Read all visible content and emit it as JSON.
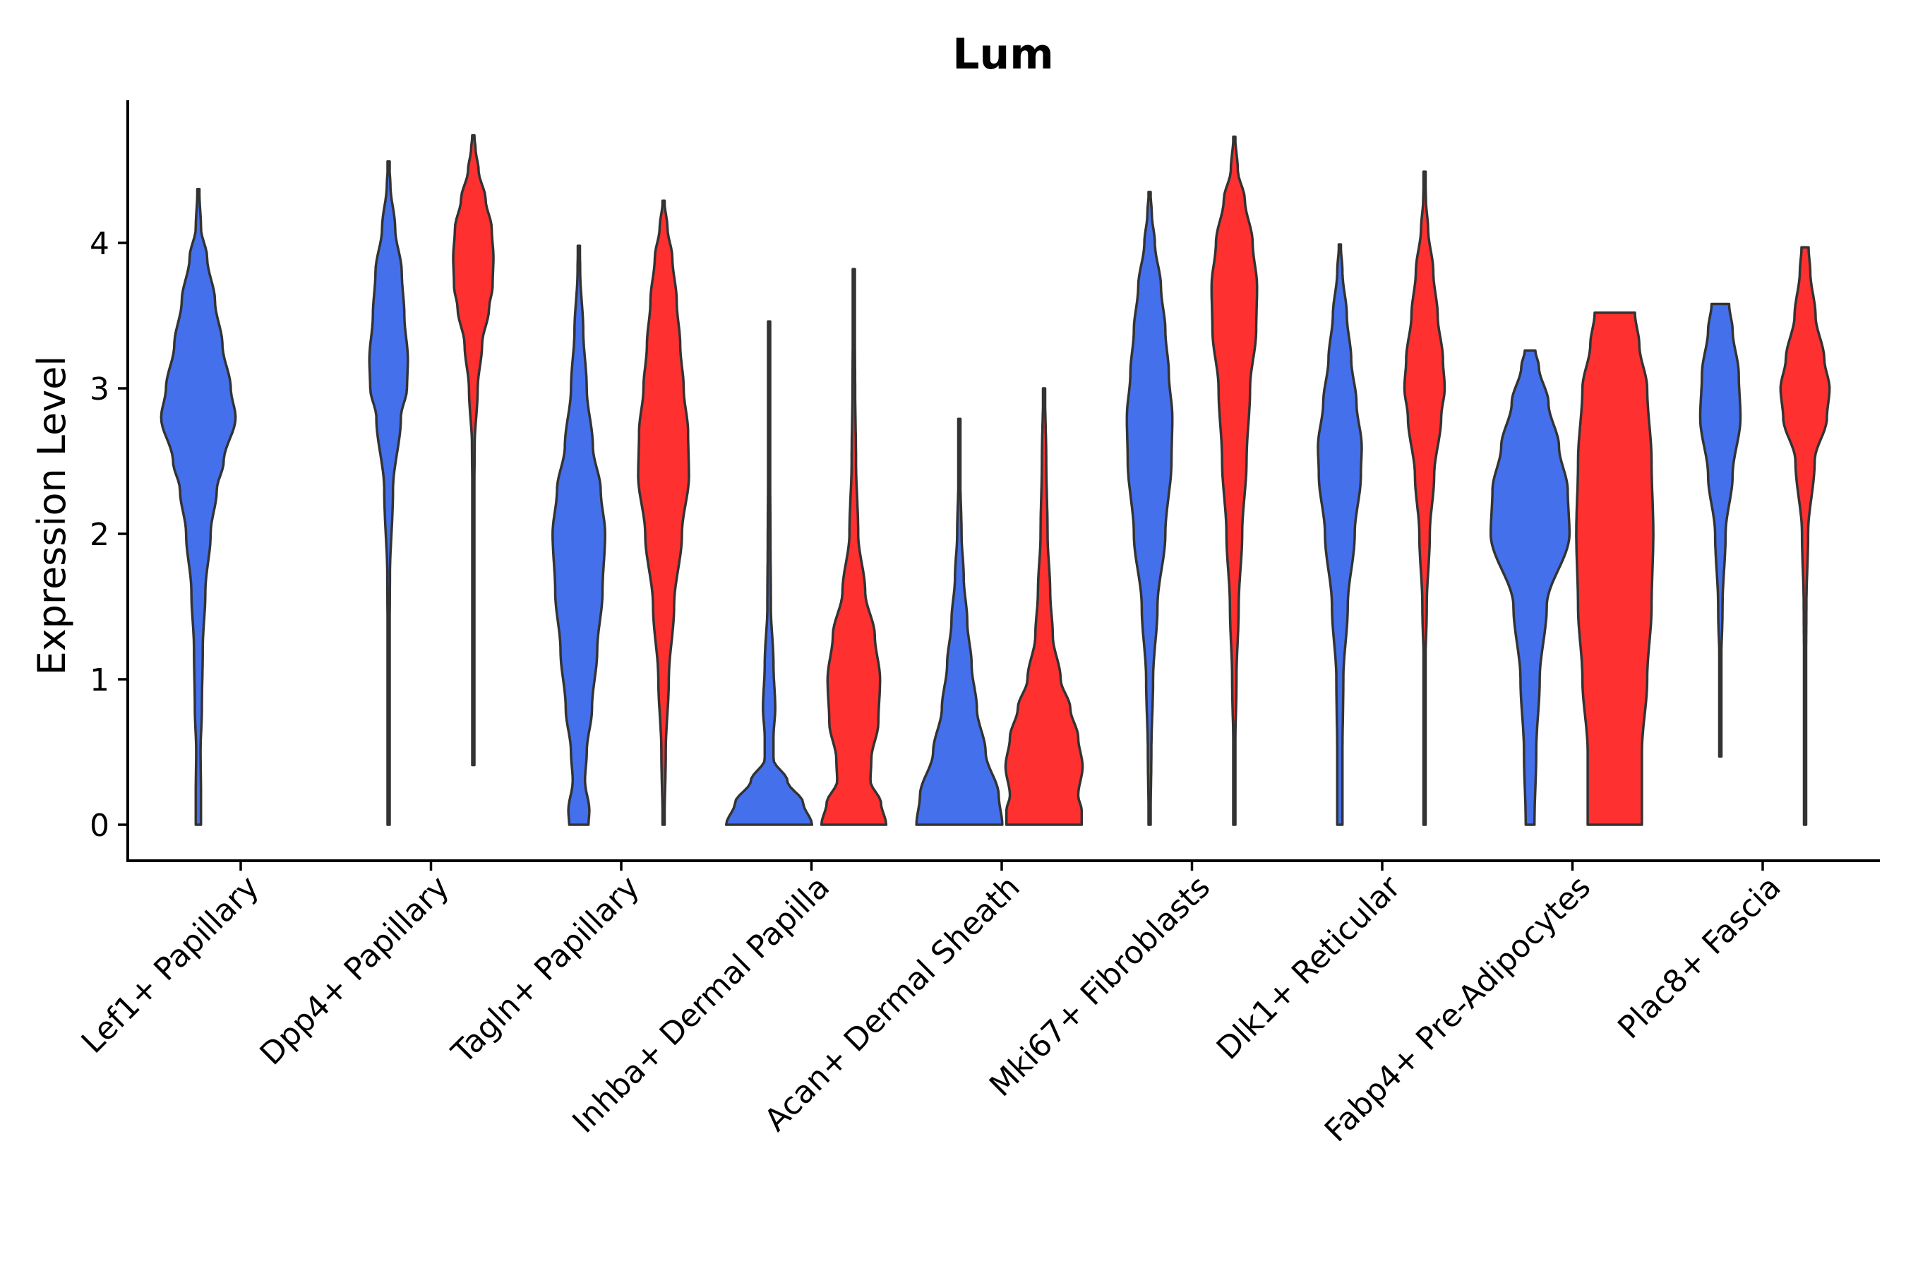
{
  "chart_data": {
    "type": "violin",
    "title": "Lum",
    "xlabel": "",
    "ylabel": "Expression Level",
    "ylim": [
      -0.25,
      4.95
    ],
    "yticks": [
      0,
      1,
      2,
      3,
      4
    ],
    "categories": [
      "Lef1+ Papillary",
      "Dpp4+ Papillary",
      "Tagln+ Papillary",
      "Inhba+ Dermal Papilla",
      "Acan+ Dermal Sheath",
      "Mki67+ Fibroblasts",
      "Dlk1+ Reticular",
      "Fabp4+ Pre-Adipocytes",
      "Plac8+ Fascia"
    ],
    "colors": {
      "group1": "#4470EC",
      "group2": "#FF3030",
      "outline": "#333333"
    },
    "violins": [
      {
        "category": "Lef1+ Papillary",
        "group": "group1",
        "min": 0.0,
        "max": 4.37,
        "profile": [
          [
            0,
            0.06
          ],
          [
            0.2,
            0.06
          ],
          [
            0.5,
            0.05
          ],
          [
            0.8,
            0.08
          ],
          [
            1.2,
            0.1
          ],
          [
            1.6,
            0.16
          ],
          [
            2.0,
            0.28
          ],
          [
            2.3,
            0.42
          ],
          [
            2.5,
            0.58
          ],
          [
            2.8,
            0.85
          ],
          [
            3.0,
            0.74
          ],
          [
            3.3,
            0.55
          ],
          [
            3.6,
            0.38
          ],
          [
            3.9,
            0.2
          ],
          [
            4.1,
            0.06
          ],
          [
            4.37,
            0.02
          ]
        ]
      },
      {
        "category": "Dpp4+ Papillary",
        "group": "group1",
        "min": 0.0,
        "max": 4.56,
        "profile": [
          [
            0,
            0.01
          ],
          [
            1.0,
            0.01
          ],
          [
            1.7,
            0.03
          ],
          [
            2.3,
            0.1
          ],
          [
            2.8,
            0.28
          ],
          [
            3.0,
            0.42
          ],
          [
            3.2,
            0.44
          ],
          [
            3.5,
            0.36
          ],
          [
            3.8,
            0.3
          ],
          [
            4.1,
            0.15
          ],
          [
            4.4,
            0.04
          ],
          [
            4.56,
            0.01
          ]
        ]
      },
      {
        "category": "Dpp4+ Papillary",
        "group": "group2",
        "min": 0.41,
        "max": 4.74,
        "profile": [
          [
            0.41,
            0.01
          ],
          [
            2.0,
            0.01
          ],
          [
            2.6,
            0.03
          ],
          [
            3.0,
            0.1
          ],
          [
            3.3,
            0.2
          ],
          [
            3.55,
            0.36
          ],
          [
            3.7,
            0.44
          ],
          [
            3.9,
            0.46
          ],
          [
            4.1,
            0.42
          ],
          [
            4.3,
            0.28
          ],
          [
            4.5,
            0.12
          ],
          [
            4.65,
            0.05
          ],
          [
            4.74,
            0.02
          ]
        ]
      },
      {
        "category": "Tagln+ Papillary",
        "group": "group1",
        "min": 0.0,
        "max": 3.98,
        "profile": [
          [
            0,
            0.22
          ],
          [
            0.1,
            0.24
          ],
          [
            0.3,
            0.14
          ],
          [
            0.5,
            0.18
          ],
          [
            0.8,
            0.3
          ],
          [
            1.2,
            0.42
          ],
          [
            1.6,
            0.54
          ],
          [
            2.0,
            0.6
          ],
          [
            2.3,
            0.5
          ],
          [
            2.6,
            0.32
          ],
          [
            3.0,
            0.18
          ],
          [
            3.4,
            0.1
          ],
          [
            3.8,
            0.03
          ],
          [
            3.98,
            0.02
          ]
        ]
      },
      {
        "category": "Tagln+ Papillary",
        "group": "group2",
        "min": 0.0,
        "max": 4.29,
        "profile": [
          [
            0,
            0.02
          ],
          [
            0.5,
            0.05
          ],
          [
            1.0,
            0.12
          ],
          [
            1.5,
            0.24
          ],
          [
            2.0,
            0.42
          ],
          [
            2.4,
            0.58
          ],
          [
            2.7,
            0.56
          ],
          [
            3.0,
            0.46
          ],
          [
            3.3,
            0.38
          ],
          [
            3.6,
            0.3
          ],
          [
            3.9,
            0.2
          ],
          [
            4.1,
            0.09
          ],
          [
            4.29,
            0.02
          ]
        ]
      },
      {
        "category": "Inhba+ Dermal Papilla",
        "group": "group1",
        "min": 0.0,
        "max": 3.46,
        "profile": [
          [
            0,
            0.98
          ],
          [
            0.15,
            0.78
          ],
          [
            0.3,
            0.42
          ],
          [
            0.45,
            0.1
          ],
          [
            0.6,
            0.1
          ],
          [
            0.8,
            0.14
          ],
          [
            1.1,
            0.1
          ],
          [
            1.5,
            0.04
          ],
          [
            2.0,
            0.03
          ],
          [
            2.5,
            0.02
          ],
          [
            3.0,
            0.01
          ],
          [
            3.46,
            0.01
          ]
        ]
      },
      {
        "category": "Inhba+ Dermal Papilla",
        "group": "group2",
        "min": 0.0,
        "max": 3.82,
        "profile": [
          [
            0,
            0.74
          ],
          [
            0.15,
            0.62
          ],
          [
            0.3,
            0.38
          ],
          [
            0.45,
            0.4
          ],
          [
            0.7,
            0.56
          ],
          [
            1.0,
            0.6
          ],
          [
            1.3,
            0.48
          ],
          [
            1.6,
            0.26
          ],
          [
            2.0,
            0.1
          ],
          [
            2.5,
            0.05
          ],
          [
            3.0,
            0.03
          ],
          [
            3.5,
            0.02
          ],
          [
            3.82,
            0.01
          ]
        ]
      },
      {
        "category": "Acan+ Dermal Sheath",
        "group": "group1",
        "min": 0.0,
        "max": 2.79,
        "profile": [
          [
            0,
            0.98
          ],
          [
            0.2,
            0.9
          ],
          [
            0.5,
            0.6
          ],
          [
            0.8,
            0.4
          ],
          [
            1.1,
            0.28
          ],
          [
            1.4,
            0.18
          ],
          [
            1.7,
            0.1
          ],
          [
            2.0,
            0.05
          ],
          [
            2.4,
            0.02
          ],
          [
            2.79,
            0.01
          ]
        ]
      },
      {
        "category": "Acan+ Dermal Sheath",
        "group": "group2",
        "min": 0.0,
        "max": 3.0,
        "profile": [
          [
            0,
            0.86
          ],
          [
            0.1,
            0.86
          ],
          [
            0.2,
            0.78
          ],
          [
            0.4,
            0.88
          ],
          [
            0.6,
            0.78
          ],
          [
            0.8,
            0.6
          ],
          [
            1.0,
            0.38
          ],
          [
            1.3,
            0.2
          ],
          [
            1.6,
            0.14
          ],
          [
            2.0,
            0.08
          ],
          [
            2.5,
            0.05
          ],
          [
            3.0,
            0.02
          ]
        ]
      },
      {
        "category": "Mki67+ Fibroblasts",
        "group": "group1",
        "min": 0.0,
        "max": 4.35,
        "profile": [
          [
            0,
            0.02
          ],
          [
            0.5,
            0.04
          ],
          [
            1.0,
            0.08
          ],
          [
            1.5,
            0.18
          ],
          [
            2.0,
            0.36
          ],
          [
            2.5,
            0.5
          ],
          [
            2.8,
            0.52
          ],
          [
            3.1,
            0.44
          ],
          [
            3.4,
            0.36
          ],
          [
            3.7,
            0.26
          ],
          [
            4.0,
            0.12
          ],
          [
            4.2,
            0.05
          ],
          [
            4.35,
            0.02
          ]
        ]
      },
      {
        "category": "Mki67+ Fibroblasts",
        "group": "group2",
        "min": 0.0,
        "max": 4.73,
        "profile": [
          [
            0,
            0.01
          ],
          [
            0.5,
            0.02
          ],
          [
            1.0,
            0.05
          ],
          [
            1.5,
            0.1
          ],
          [
            2.0,
            0.18
          ],
          [
            2.5,
            0.28
          ],
          [
            3.0,
            0.36
          ],
          [
            3.4,
            0.5
          ],
          [
            3.7,
            0.52
          ],
          [
            4.0,
            0.42
          ],
          [
            4.3,
            0.24
          ],
          [
            4.5,
            0.08
          ],
          [
            4.73,
            0.02
          ]
        ]
      },
      {
        "category": "Dlk1+ Reticular",
        "group": "group1",
        "min": 0.0,
        "max": 3.99,
        "profile": [
          [
            0,
            0.06
          ],
          [
            0.5,
            0.06
          ],
          [
            1.0,
            0.08
          ],
          [
            1.5,
            0.18
          ],
          [
            2.0,
            0.34
          ],
          [
            2.4,
            0.48
          ],
          [
            2.6,
            0.5
          ],
          [
            2.9,
            0.38
          ],
          [
            3.2,
            0.26
          ],
          [
            3.5,
            0.16
          ],
          [
            3.8,
            0.06
          ],
          [
            3.99,
            0.02
          ]
        ]
      },
      {
        "category": "Dlk1+ Reticular",
        "group": "group2",
        "min": 0.0,
        "max": 4.49,
        "profile": [
          [
            0,
            0.01
          ],
          [
            1.0,
            0.01
          ],
          [
            1.5,
            0.05
          ],
          [
            2.0,
            0.12
          ],
          [
            2.4,
            0.22
          ],
          [
            2.8,
            0.38
          ],
          [
            3.0,
            0.46
          ],
          [
            3.2,
            0.42
          ],
          [
            3.5,
            0.3
          ],
          [
            3.8,
            0.2
          ],
          [
            4.1,
            0.08
          ],
          [
            4.3,
            0.03
          ],
          [
            4.49,
            0.01
          ]
        ]
      },
      {
        "category": "Fabp4+ Pre-Adipocytes",
        "group": "group1",
        "min": 0.0,
        "max": 3.26,
        "profile": [
          [
            0,
            0.1
          ],
          [
            0.5,
            0.14
          ],
          [
            1.0,
            0.22
          ],
          [
            1.5,
            0.38
          ],
          [
            2.0,
            0.9
          ],
          [
            2.3,
            0.86
          ],
          [
            2.6,
            0.66
          ],
          [
            2.9,
            0.42
          ],
          [
            3.15,
            0.2
          ],
          [
            3.26,
            0.12
          ]
        ]
      },
      {
        "category": "Fabp4+ Pre-Adipocytes",
        "group": "group2",
        "min": 0.0,
        "max": 3.52,
        "profile": [
          [
            0,
            0.62
          ],
          [
            0.5,
            0.62
          ],
          [
            1.0,
            0.74
          ],
          [
            1.5,
            0.84
          ],
          [
            2.0,
            0.88
          ],
          [
            2.5,
            0.84
          ],
          [
            3.0,
            0.74
          ],
          [
            3.3,
            0.56
          ],
          [
            3.52,
            0.46
          ]
        ]
      },
      {
        "category": "Plac8+ Fascia",
        "group": "group1",
        "min": 0.47,
        "max": 3.58,
        "profile": [
          [
            0.47,
            0.01
          ],
          [
            1.0,
            0.01
          ],
          [
            1.5,
            0.05
          ],
          [
            2.0,
            0.12
          ],
          [
            2.4,
            0.28
          ],
          [
            2.8,
            0.46
          ],
          [
            3.1,
            0.42
          ],
          [
            3.4,
            0.28
          ],
          [
            3.58,
            0.2
          ]
        ]
      },
      {
        "category": "Plac8+ Fascia",
        "group": "group2",
        "min": 0.0,
        "max": 3.97,
        "profile": [
          [
            0,
            0.01
          ],
          [
            1.0,
            0.02
          ],
          [
            1.5,
            0.03
          ],
          [
            2.0,
            0.07
          ],
          [
            2.5,
            0.22
          ],
          [
            2.8,
            0.5
          ],
          [
            3.0,
            0.56
          ],
          [
            3.2,
            0.44
          ],
          [
            3.5,
            0.24
          ],
          [
            3.8,
            0.12
          ],
          [
            3.97,
            0.08
          ]
        ]
      }
    ]
  }
}
